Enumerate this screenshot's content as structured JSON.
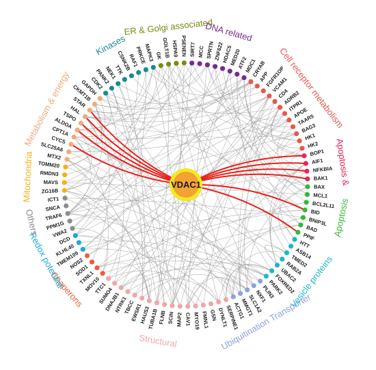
{
  "hub": {
    "label": "VDAC1",
    "fill": "#f4a234",
    "ring": "#f3e91f"
  },
  "edge_color_hub": "#e8201a",
  "edge_color_other": "#9a9a9a",
  "categories": [
    {
      "id": "metabolism",
      "label": "Metabolism & energy",
      "color": "#f2a97a",
      "genes": [
        "MTX2",
        "SLC25A6",
        "CYCS",
        "CPT1A",
        "ALDOA",
        "TSPO",
        "HAL",
        "STAR",
        "CKMT1B",
        "GAPDH"
      ]
    },
    {
      "id": "kinases",
      "label": "Kinases",
      "color": "#1a8b8f",
      "genes": [
        "CDK2",
        "PANK2",
        "NEK1",
        "TTK",
        "CSNK2B",
        "RAF1",
        "PRKCE",
        "MAPK3"
      ]
    },
    {
      "id": "er-golgi",
      "label": "ER & Golgi associated",
      "color": "#7a8a12",
      "genes": [
        "GK",
        "GOLT1B",
        "HSPA9",
        "PSENEN"
      ]
    },
    {
      "id": "dna",
      "label": "DNA related",
      "color": "#7b2a8e",
      "genes": [
        "SIRT7",
        "MCC",
        "SPRTN",
        "ZNF622",
        "HDAC5",
        "MED20",
        "ATF2",
        "MDC1"
      ]
    },
    {
      "id": "cell-receptor",
      "label": "Cell receptor metabolism",
      "color": "#e5584f",
      "genes": [
        "CRYAB",
        "APP",
        "FGFR1OP",
        "VCAM1",
        "CD4",
        "ADRB2",
        "ITPR1",
        "APOE",
        "TAAR5",
        "BAG3",
        "HK1",
        "HK2"
      ]
    },
    {
      "id": "apoptosis-red",
      "label": "Apoptosis &",
      "color": "#e8245a",
      "genes": [
        "BOP1",
        "AIF1",
        "NFKBIA",
        "BAK1"
      ]
    },
    {
      "id": "apoptosis",
      "label": "Apoptosis",
      "color": "#36b836",
      "genes": [
        "BAX",
        "MCL1",
        "BCL2L11",
        "BID",
        "BNIP3L",
        "BAD",
        "PPIF"
      ]
    },
    {
      "id": "vesicle",
      "label": "Vesicle proteins",
      "color": "#1ab8cc",
      "genes": [
        "HTT",
        "ASB14",
        "TMED2",
        "RAB2A",
        "UBAC2",
        "FOXRED2",
        "PARK2"
      ]
    },
    {
      "id": "transporter",
      "label": "Ubiquitination Transporter",
      "color": "#8ea0e0",
      "genes": [
        "PLIN3",
        "NXF1",
        "SLC1A2",
        "MMGT1",
        "ACTG1"
      ]
    },
    {
      "id": "structural",
      "label": "Structural",
      "color": "#f0a7a4",
      "genes": [
        "SERPINE1",
        "DYNLT1",
        "GSN",
        "FMNL1",
        "MYO19",
        "CAV1",
        "MAP2",
        "SCIN",
        "FLNB",
        "TUBA1B",
        "HAUS3",
        "EWSR1",
        "TBCC",
        "NTRK1",
        "DNAJB1",
        "SUMO4",
        "TTC1"
      ]
    },
    {
      "id": "chaperons",
      "label": "Chaperons",
      "color": "#e85f3a",
      "genes": [
        "MOV10",
        "TXNL1",
        "SOD1",
        "NOS2"
      ]
    },
    {
      "id": "redox",
      "label": "Redox potential",
      "color": "#19a9d6",
      "genes": [
        "TMEM109",
        "KLHL40",
        "DCD"
      ]
    },
    {
      "id": "others",
      "label": "Others",
      "color": "#8c8c8c",
      "genes": [
        "VWA2",
        "PPM1G",
        "TRAF6",
        "SNCA",
        "ICT1"
      ]
    },
    {
      "id": "mitochondria",
      "label": "Mitochondria",
      "color": "#f5b01a",
      "genes": [
        "ZG16B",
        "MAVS",
        "RMDN3",
        "TOMM20"
      ]
    }
  ],
  "hub_partners": [
    "TSPO",
    "HAL",
    "ALDOA",
    "STAR",
    "CYCS",
    "PPIF",
    "NFKBIA",
    "BAK1",
    "AIF1",
    "BID",
    "BOP1"
  ]
}
